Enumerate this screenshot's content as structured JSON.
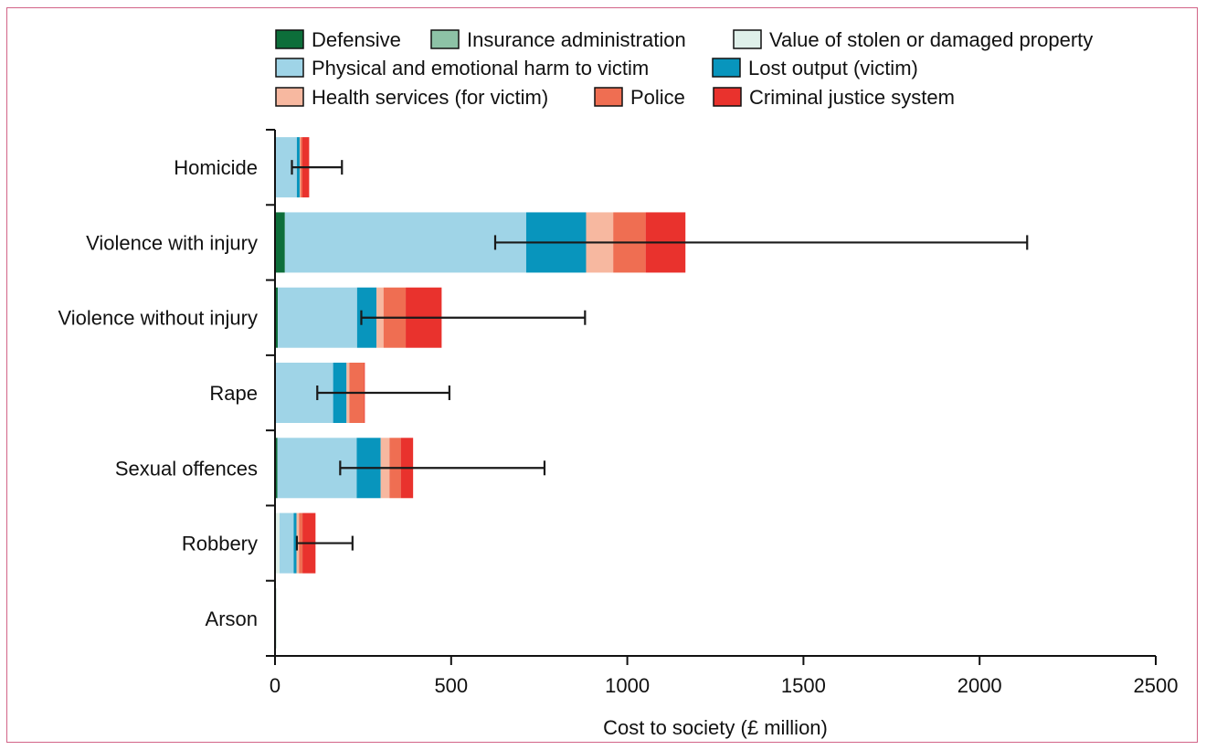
{
  "chart_data": {
    "type": "bar",
    "orientation": "horizontal",
    "stacked": true,
    "title": "",
    "xlabel": "Cost to society (£ million)",
    "ylabel": "",
    "xlim": [
      0,
      2500
    ],
    "xticks": [
      0,
      500,
      1000,
      1500,
      2000,
      2500
    ],
    "grid": false,
    "legend_position": "top",
    "categories": [
      "Homicide",
      "Violence with injury",
      "Violence without injury",
      "Rape",
      "Sexual offences",
      "Robbery",
      "Arson"
    ],
    "series": [
      {
        "name": "Defensive",
        "color": "#0d6e3a",
        "values": [
          0,
          28,
          8,
          0,
          7,
          0,
          3
        ]
      },
      {
        "name": "Insurance administration",
        "color": "#8dc2a6",
        "values": [
          0,
          0,
          0,
          0,
          0,
          3,
          0
        ]
      },
      {
        "name": "Value of stolen or damaged property",
        "color": "#dff0ea",
        "values": [
          0,
          0,
          0,
          0,
          0,
          10,
          0
        ]
      },
      {
        "name": "Physical and emotional harm to victim",
        "color": "#9fd4e7",
        "values": [
          62,
          685,
          225,
          165,
          225,
          40,
          0
        ]
      },
      {
        "name": "Lost output (victim)",
        "color": "#0895bd",
        "values": [
          8,
          170,
          55,
          38,
          68,
          8,
          0
        ]
      },
      {
        "name": "Health services (for victim)",
        "color": "#f7b8a0",
        "values": [
          2,
          77,
          20,
          8,
          25,
          7,
          0
        ]
      },
      {
        "name": "Police",
        "color": "#ef6e52",
        "values": [
          5,
          92,
          63,
          42,
          32,
          10,
          0
        ]
      },
      {
        "name": "Criminal justice system",
        "color": "#e9322d",
        "values": [
          20,
          113,
          102,
          2,
          35,
          37,
          0
        ]
      }
    ],
    "error_bars": [
      {
        "category": "Homicide",
        "low": 48,
        "high": 190
      },
      {
        "category": "Violence with injury",
        "low": 625,
        "high": 2135
      },
      {
        "category": "Violence without injury",
        "low": 245,
        "high": 880
      },
      {
        "category": "Rape",
        "low": 120,
        "high": 495
      },
      {
        "category": "Sexual offences",
        "low": 185,
        "high": 765
      },
      {
        "category": "Robbery",
        "low": 62,
        "high": 220
      }
    ]
  }
}
